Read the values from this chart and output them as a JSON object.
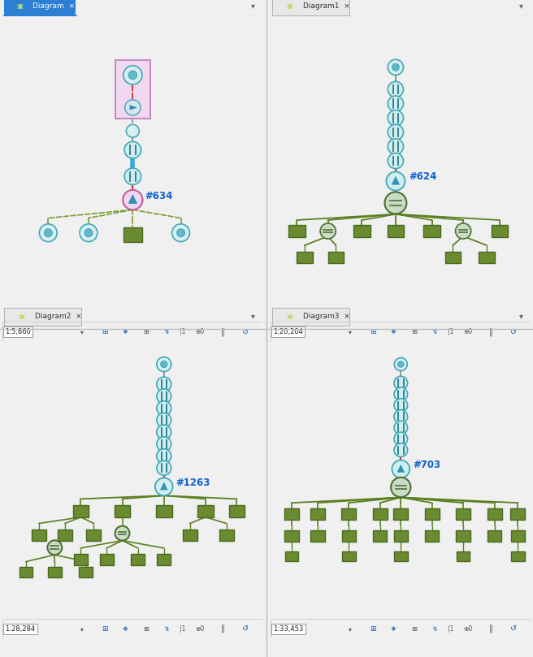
{
  "bg_color": "#f0f0f0",
  "panel_bg": "#ffffff",
  "tab_active_bg": "#2b7fd4",
  "tab_inactive_bg": "#e8e8e8",
  "header_bg": "#e0e0e0",
  "toolbar_bg": "#f5f5f5",
  "node_circle_fill": "#d0eef0",
  "node_circle_edge": "#40a8b8",
  "node_rect_fill": "#6a8c30",
  "node_rect_edge": "#4a6820",
  "line_blue": "#38a8d8",
  "line_red_dashed": "#cc3322",
  "line_gray_dashed": "#888888",
  "line_green_solid": "#5a8020",
  "line_green_dashed": "#7a9c30",
  "annotation_color": "#1060d0",
  "divider_color": "#bbbbbb",
  "panels": [
    {
      "name": "Diagram",
      "scale": "1:5,860",
      "active": true
    },
    {
      "name": "Diagram1",
      "scale": "1:20,204",
      "active": false
    },
    {
      "name": "Diagram2",
      "scale": "1:28,284",
      "active": false
    },
    {
      "name": "Diagram3",
      "scale": "1:33,453",
      "active": false
    }
  ]
}
